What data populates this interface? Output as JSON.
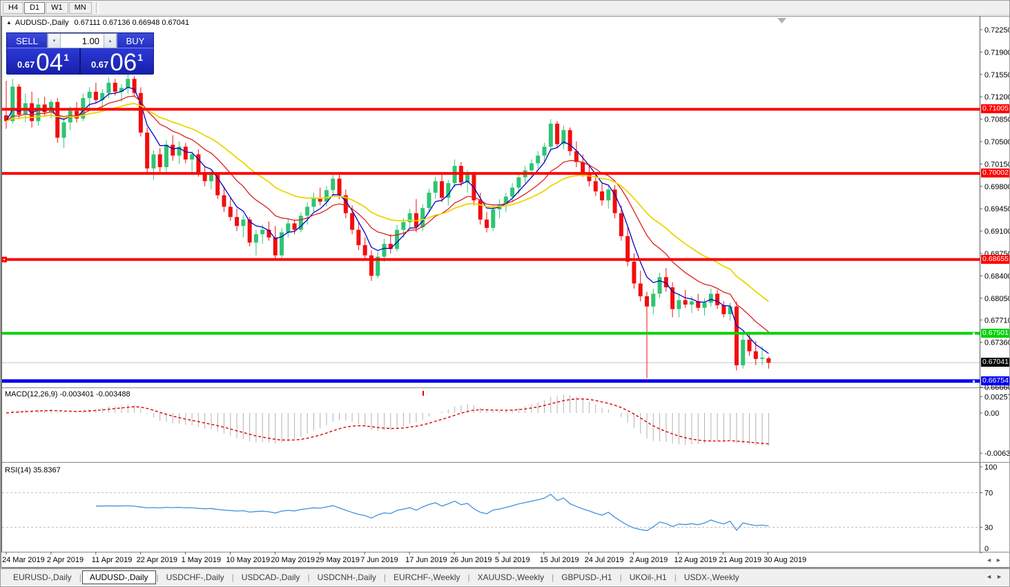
{
  "toolbar": {
    "timeframes": [
      {
        "label": "H4",
        "active": false
      },
      {
        "label": "D1",
        "active": true
      },
      {
        "label": "W1",
        "active": false
      },
      {
        "label": "MN",
        "active": false
      }
    ]
  },
  "chart_header": {
    "collapse_icon": "▲",
    "title": "AUDUSD-,Daily",
    "ohlc": "0.67111 0.67136 0.66948 0.67041"
  },
  "trade_panel": {
    "sell_label": "SELL",
    "buy_label": "BUY",
    "volume": "1.00",
    "down_arrow": "▾",
    "up_arrow": "▴",
    "sell_price_small": "0.67",
    "sell_price_big": "04",
    "sell_price_sup": "1",
    "buy_price_small": "0.67",
    "buy_price_big": "06",
    "buy_price_sup": "1"
  },
  "colors": {
    "bull": "#2fc473",
    "bear": "#f20d0d",
    "ma_fast": "#0000c8",
    "ma_mid": "#dc1e1e",
    "ma_slow": "#ecd500",
    "line_red": "#ff0000",
    "line_green": "#00d300",
    "line_blue": "#0000f0",
    "macd_hist": "#b2b2b2",
    "macd_signal": "#dd0000",
    "rsi_line": "#4090e0",
    "rsi_level": "#bdbdbd",
    "price_line": "#c4c4c4",
    "current_label_bg": "#000000",
    "axis_text": "#000000"
  },
  "chart_data": {
    "type": "candlestick",
    "symbol": "AUDUSD-",
    "timeframe": "Daily",
    "x_labels": [
      "24 Mar 2019",
      "2 Apr 2019",
      "11 Apr 2019",
      "22 Apr 2019",
      "1 May 2019",
      "10 May 2019",
      "20 May 2019",
      "29 May 2019",
      "7 Jun 2019",
      "17 Jun 2019",
      "26 Jun 2019",
      "5 Jul 2019",
      "15 Jul 2019",
      "24 Jul 2019",
      "2 Aug 2019",
      "12 Aug 2019",
      "21 Aug 2019",
      "30 Aug 2019"
    ],
    "bars_per_label": 7,
    "price_ticks": [
      "0.72250",
      "0.71900",
      "0.71550",
      "0.71200",
      "0.70850",
      "0.70500",
      "0.70150",
      "0.69800",
      "0.69450",
      "0.69100",
      "0.68750",
      "0.68400",
      "0.68050",
      "0.67710",
      "0.67360",
      "0.66660"
    ],
    "hlines": [
      {
        "price": 0.71005,
        "label": "0.71005",
        "color": "#ff0000",
        "width": 4,
        "left_handle": false,
        "right_dot": false
      },
      {
        "price": 0.70002,
        "label": "0.70002",
        "color": "#ff0000",
        "width": 4,
        "left_handle": false,
        "right_dot": false
      },
      {
        "price": 0.68655,
        "label": "0.68655",
        "color": "#ff0000",
        "width": 4,
        "left_handle": true,
        "right_dot": false
      },
      {
        "price": 0.67501,
        "label": "0.67501",
        "color": "#00d300",
        "width": 4,
        "left_handle": false,
        "right_dot": true
      },
      {
        "price": 0.66754,
        "label": "0.66754",
        "color": "#0000f0",
        "width": 5,
        "left_handle": false,
        "right_dot": true
      }
    ],
    "current_price": 0.67041,
    "current_price_label": "0.67041",
    "candles": [
      [
        0.7091,
        0.7145,
        0.707,
        0.7082
      ],
      [
        0.7082,
        0.7148,
        0.7078,
        0.7136
      ],
      [
        0.7136,
        0.714,
        0.7085,
        0.7092
      ],
      [
        0.7092,
        0.7125,
        0.708,
        0.711
      ],
      [
        0.711,
        0.7128,
        0.7072,
        0.7082
      ],
      [
        0.7082,
        0.7118,
        0.7075,
        0.7108
      ],
      [
        0.7108,
        0.712,
        0.709,
        0.7096
      ],
      [
        0.7096,
        0.7116,
        0.7086,
        0.7112
      ],
      [
        0.7112,
        0.7118,
        0.7048,
        0.7056
      ],
      [
        0.7056,
        0.7088,
        0.704,
        0.708
      ],
      [
        0.708,
        0.7105,
        0.7068,
        0.7098
      ],
      [
        0.7098,
        0.7112,
        0.708,
        0.7086
      ],
      [
        0.7086,
        0.7125,
        0.7082,
        0.7118
      ],
      [
        0.7118,
        0.7135,
        0.71,
        0.7128
      ],
      [
        0.7128,
        0.7142,
        0.711,
        0.7115
      ],
      [
        0.7115,
        0.7132,
        0.7102,
        0.7126
      ],
      [
        0.7126,
        0.715,
        0.7118,
        0.7142
      ],
      [
        0.7142,
        0.7148,
        0.7122,
        0.7128
      ],
      [
        0.7128,
        0.714,
        0.7112,
        0.7134
      ],
      [
        0.7134,
        0.7155,
        0.7125,
        0.7148
      ],
      [
        0.7148,
        0.7152,
        0.712,
        0.7126
      ],
      [
        0.7126,
        0.7135,
        0.7058,
        0.7064
      ],
      [
        0.7064,
        0.7072,
        0.7,
        0.7008
      ],
      [
        0.7008,
        0.7036,
        0.699,
        0.703
      ],
      [
        0.703,
        0.704,
        0.7002,
        0.701
      ],
      [
        0.701,
        0.7052,
        0.7,
        0.7045
      ],
      [
        0.7045,
        0.706,
        0.702,
        0.7028
      ],
      [
        0.7028,
        0.705,
        0.7015,
        0.7042
      ],
      [
        0.7042,
        0.7048,
        0.7016,
        0.7022
      ],
      [
        0.7022,
        0.7035,
        0.7,
        0.703
      ],
      [
        0.703,
        0.7038,
        0.6995,
        0.7002
      ],
      [
        0.7002,
        0.7012,
        0.698,
        0.6988
      ],
      [
        0.6988,
        0.7005,
        0.6975,
        0.6998
      ],
      [
        0.6998,
        0.7002,
        0.696,
        0.6966
      ],
      [
        0.6966,
        0.698,
        0.694,
        0.6948
      ],
      [
        0.6948,
        0.6962,
        0.6926,
        0.6932
      ],
      [
        0.6932,
        0.6945,
        0.691,
        0.6918
      ],
      [
        0.6918,
        0.6935,
        0.69,
        0.6928
      ],
      [
        0.6928,
        0.6932,
        0.6886,
        0.6892
      ],
      [
        0.6892,
        0.6912,
        0.6872,
        0.6905
      ],
      [
        0.6905,
        0.692,
        0.689,
        0.6912
      ],
      [
        0.6912,
        0.6925,
        0.6895,
        0.69
      ],
      [
        0.69,
        0.6918,
        0.6865,
        0.6872
      ],
      [
        0.6872,
        0.6915,
        0.6868,
        0.6908
      ],
      [
        0.6908,
        0.693,
        0.69,
        0.6922
      ],
      [
        0.6922,
        0.6928,
        0.6905,
        0.6912
      ],
      [
        0.6912,
        0.694,
        0.6908,
        0.6934
      ],
      [
        0.6934,
        0.6955,
        0.692,
        0.6948
      ],
      [
        0.6948,
        0.697,
        0.694,
        0.6962
      ],
      [
        0.6962,
        0.6978,
        0.695,
        0.6956
      ],
      [
        0.6956,
        0.698,
        0.6948,
        0.6974
      ],
      [
        0.6974,
        0.7,
        0.6965,
        0.6992
      ],
      [
        0.6992,
        0.6998,
        0.696,
        0.6966
      ],
      [
        0.6966,
        0.6975,
        0.693,
        0.6938
      ],
      [
        0.6938,
        0.695,
        0.6905,
        0.6912
      ],
      [
        0.6912,
        0.6925,
        0.688,
        0.6888
      ],
      [
        0.6888,
        0.69,
        0.6865,
        0.6872
      ],
      [
        0.6872,
        0.688,
        0.6832,
        0.684
      ],
      [
        0.684,
        0.6878,
        0.6836,
        0.687
      ],
      [
        0.687,
        0.6898,
        0.6862,
        0.689
      ],
      [
        0.689,
        0.6905,
        0.6875,
        0.6882
      ],
      [
        0.6882,
        0.692,
        0.6878,
        0.6912
      ],
      [
        0.6912,
        0.693,
        0.69,
        0.6924
      ],
      [
        0.6924,
        0.6945,
        0.6915,
        0.6938
      ],
      [
        0.6938,
        0.696,
        0.6908,
        0.6916
      ],
      [
        0.6916,
        0.6952,
        0.691,
        0.6946
      ],
      [
        0.6946,
        0.6976,
        0.694,
        0.697
      ],
      [
        0.697,
        0.6995,
        0.696,
        0.6988
      ],
      [
        0.6988,
        0.7,
        0.6955,
        0.6962
      ],
      [
        0.6962,
        0.699,
        0.695,
        0.6985
      ],
      [
        0.6985,
        0.7022,
        0.6978,
        0.7012
      ],
      [
        0.7012,
        0.7018,
        0.698,
        0.6986
      ],
      [
        0.6986,
        0.7005,
        0.697,
        0.6998
      ],
      [
        0.6998,
        0.7002,
        0.695,
        0.6958
      ],
      [
        0.6958,
        0.697,
        0.692,
        0.6928
      ],
      [
        0.6928,
        0.694,
        0.6908,
        0.6915
      ],
      [
        0.6915,
        0.695,
        0.691,
        0.6944
      ],
      [
        0.6944,
        0.696,
        0.693,
        0.6952
      ],
      [
        0.6952,
        0.697,
        0.694,
        0.6964
      ],
      [
        0.6964,
        0.6985,
        0.6955,
        0.6978
      ],
      [
        0.6978,
        0.7,
        0.6968,
        0.6994
      ],
      [
        0.6994,
        0.7012,
        0.6985,
        0.7005
      ],
      [
        0.7005,
        0.7022,
        0.6995,
        0.7016
      ],
      [
        0.7016,
        0.7035,
        0.7008,
        0.7028
      ],
      [
        0.7028,
        0.7048,
        0.7018,
        0.7042
      ],
      [
        0.7042,
        0.7085,
        0.7035,
        0.7078
      ],
      [
        0.7078,
        0.7082,
        0.704,
        0.7046
      ],
      [
        0.7046,
        0.7075,
        0.7038,
        0.7068
      ],
      [
        0.7068,
        0.7072,
        0.7028,
        0.7035
      ],
      [
        0.7035,
        0.705,
        0.701,
        0.7018
      ],
      [
        0.7018,
        0.703,
        0.6995,
        0.7002
      ],
      [
        0.7002,
        0.7015,
        0.698,
        0.6988
      ],
      [
        0.6988,
        0.7,
        0.6965,
        0.6972
      ],
      [
        0.6972,
        0.6985,
        0.695,
        0.6958
      ],
      [
        0.6958,
        0.698,
        0.6945,
        0.6975
      ],
      [
        0.6975,
        0.6982,
        0.693,
        0.6938
      ],
      [
        0.6938,
        0.695,
        0.6895,
        0.6902
      ],
      [
        0.6902,
        0.6915,
        0.6855,
        0.6862
      ],
      [
        0.6862,
        0.6875,
        0.682,
        0.6828
      ],
      [
        0.6828,
        0.6848,
        0.68,
        0.6808
      ],
      [
        0.6808,
        0.6815,
        0.668,
        0.6792
      ],
      [
        0.6792,
        0.682,
        0.678,
        0.6812
      ],
      [
        0.6812,
        0.6845,
        0.6805,
        0.6838
      ],
      [
        0.6838,
        0.6852,
        0.6815,
        0.6822
      ],
      [
        0.6822,
        0.683,
        0.6775,
        0.6788
      ],
      [
        0.6788,
        0.681,
        0.6775,
        0.6802
      ],
      [
        0.6802,
        0.6818,
        0.679,
        0.6795
      ],
      [
        0.6795,
        0.6808,
        0.6782,
        0.68
      ],
      [
        0.68,
        0.6812,
        0.6785,
        0.679
      ],
      [
        0.679,
        0.6805,
        0.6778,
        0.6798
      ],
      [
        0.6798,
        0.682,
        0.6792,
        0.6812
      ],
      [
        0.6812,
        0.6818,
        0.6788,
        0.6794
      ],
      [
        0.6794,
        0.68,
        0.6775,
        0.678
      ],
      [
        0.678,
        0.6798,
        0.677,
        0.6792
      ],
      [
        0.6792,
        0.68,
        0.6692,
        0.67
      ],
      [
        0.67,
        0.6748,
        0.6695,
        0.674
      ],
      [
        0.674,
        0.6752,
        0.6715,
        0.6722
      ],
      [
        0.6722,
        0.6738,
        0.67,
        0.671
      ],
      [
        0.671,
        0.673,
        0.67,
        0.6712
      ],
      [
        0.67111,
        0.67136,
        0.66948,
        0.67041
      ]
    ],
    "moving_averages": [
      {
        "name": "fast",
        "period": 5,
        "color": "#0000c8",
        "width": 1.3
      },
      {
        "name": "mid",
        "period": 13,
        "color": "#dc1e1e",
        "width": 1.3
      },
      {
        "name": "slow",
        "period": 26,
        "color": "#ecd500",
        "width": 1.8
      }
    ],
    "indicators": [
      {
        "name": "MACD",
        "label": "MACD(12,26,9) -0.003401 -0.003488",
        "fast": 12,
        "slow": 26,
        "signal": 9,
        "axis_labels": [
          {
            "text": "0.002574",
            "value": 0.002574
          },
          {
            "text": "0.00",
            "value": 0
          },
          {
            "text": "-0.006326",
            "value": -0.006326
          }
        ]
      },
      {
        "name": "RSI",
        "label": "RSI(14) 35.8367",
        "period": 14,
        "levels": [
          70,
          30
        ],
        "axis_labels": [
          {
            "text": "100",
            "value": 100
          },
          {
            "text": "70",
            "value": 70
          },
          {
            "text": "30",
            "value": 30
          },
          {
            "text": "0",
            "value": 0
          }
        ]
      }
    ]
  },
  "tabs": {
    "items": [
      {
        "label": "EURUSD-,Daily",
        "active": false
      },
      {
        "label": "AUDUSD-,Daily",
        "active": true
      },
      {
        "label": "USDCHF-,Daily",
        "active": false
      },
      {
        "label": "USDCAD-,Daily",
        "active": false
      },
      {
        "label": "USDCNH-,Daily",
        "active": false
      },
      {
        "label": "EURCHF-,Weekly",
        "active": false
      },
      {
        "label": "XAUUSD-,Weekly",
        "active": false
      },
      {
        "label": "GBPUSD-,H1",
        "active": false
      },
      {
        "label": "UKOil-,H1",
        "active": false
      },
      {
        "label": "USDX-,Weekly",
        "active": false
      }
    ],
    "left_arrow": "◄",
    "right_arrow": "►"
  }
}
